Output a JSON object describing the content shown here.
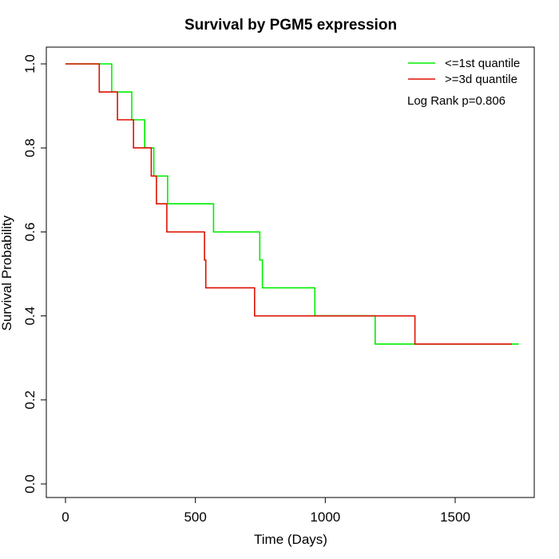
{
  "chart_data": {
    "type": "line",
    "subtype": "kaplan-meier step",
    "title": "Survival by PGM5 expression",
    "xlabel": "Time (Days)",
    "ylabel": "Survival Probability",
    "xlim": [
      0,
      1800
    ],
    "ylim": [
      0,
      1.0
    ],
    "xticks": [
      0,
      500,
      1000,
      1500
    ],
    "xtick_labels": [
      "0",
      "500",
      "1000",
      "1500"
    ],
    "yticks": [
      0.0,
      0.2,
      0.4,
      0.6,
      0.8,
      1.0
    ],
    "ytick_labels": [
      "0.0",
      "0.2",
      "0.4",
      "0.6",
      "0.8",
      "1.0"
    ],
    "grid": false,
    "legend_position": "top-right",
    "annotation": "Log Rank p=0.806",
    "series": [
      {
        "name": "<=1st quantile",
        "color": "#00ee00",
        "points": [
          [
            0,
            1.0
          ],
          [
            178,
            1.0
          ],
          [
            178,
            0.933
          ],
          [
            255,
            0.933
          ],
          [
            255,
            0.867
          ],
          [
            305,
            0.867
          ],
          [
            305,
            0.8
          ],
          [
            340,
            0.8
          ],
          [
            340,
            0.733
          ],
          [
            393,
            0.733
          ],
          [
            393,
            0.667
          ],
          [
            570,
            0.667
          ],
          [
            570,
            0.6
          ],
          [
            748,
            0.6
          ],
          [
            748,
            0.533
          ],
          [
            758,
            0.533
          ],
          [
            758,
            0.467
          ],
          [
            960,
            0.467
          ],
          [
            960,
            0.4
          ],
          [
            1192,
            0.4
          ],
          [
            1192,
            0.333
          ],
          [
            1745,
            0.333
          ]
        ]
      },
      {
        "name": ">=3d quantile",
        "color": "#dd1100",
        "points": [
          [
            0,
            1.0
          ],
          [
            130,
            1.0
          ],
          [
            130,
            0.933
          ],
          [
            200,
            0.933
          ],
          [
            200,
            0.867
          ],
          [
            262,
            0.867
          ],
          [
            262,
            0.8
          ],
          [
            330,
            0.8
          ],
          [
            330,
            0.733
          ],
          [
            350,
            0.733
          ],
          [
            350,
            0.667
          ],
          [
            390,
            0.667
          ],
          [
            390,
            0.6
          ],
          [
            535,
            0.6
          ],
          [
            535,
            0.533
          ],
          [
            540,
            0.533
          ],
          [
            540,
            0.467
          ],
          [
            728,
            0.467
          ],
          [
            728,
            0.4
          ],
          [
            1345,
            0.4
          ],
          [
            1345,
            0.333
          ],
          [
            1718,
            0.333
          ]
        ]
      }
    ]
  }
}
